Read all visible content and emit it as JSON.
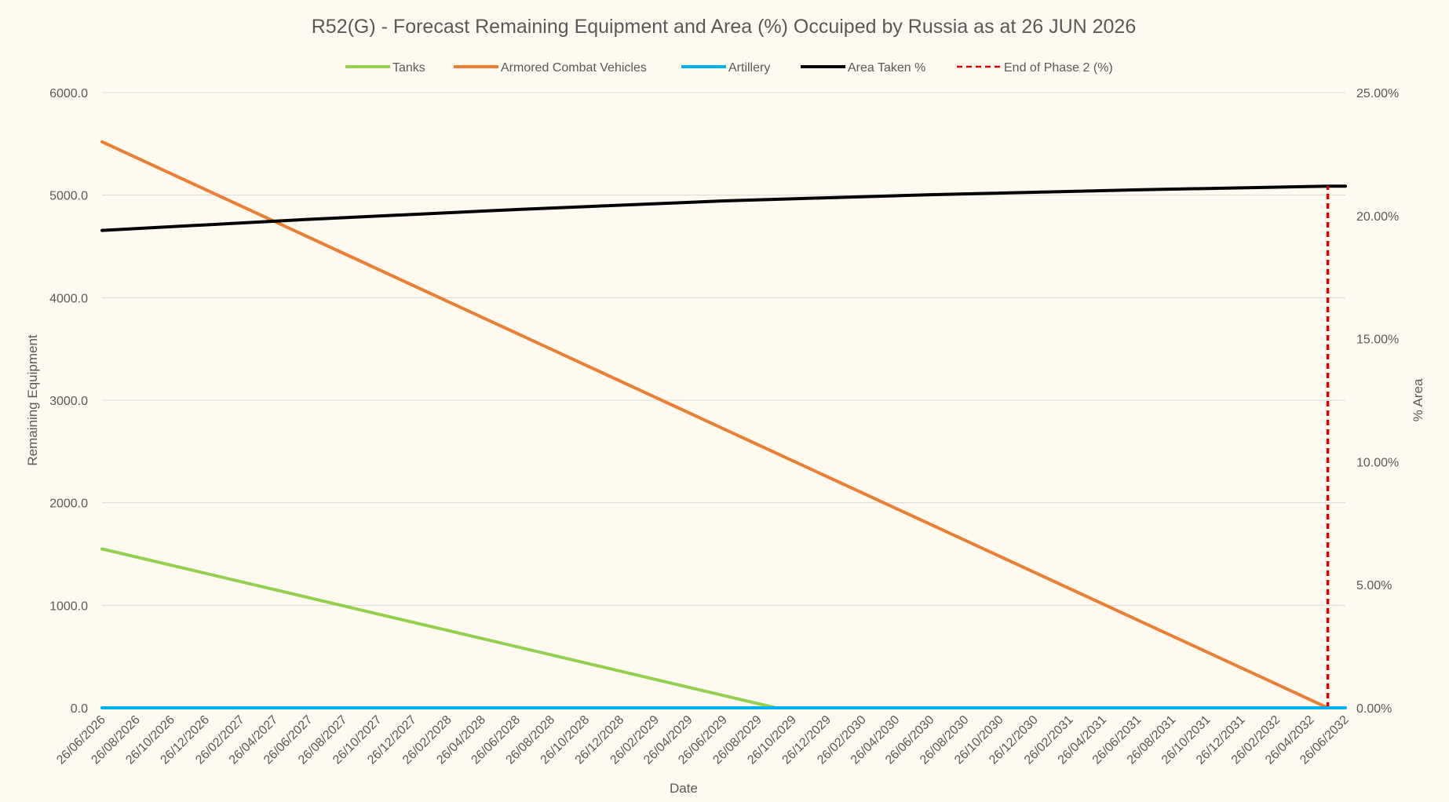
{
  "chart_data": {
    "type": "line",
    "title": "R52(G) - Forecast Remaining Equipment and Area (%) Occuiped by Russia as at 26 JUN 2026",
    "xlabel": "Date",
    "ylabel": "Remaining Equipment",
    "y2label": "% Area",
    "ylim": [
      0,
      6000
    ],
    "y2lim": [
      0,
      25
    ],
    "yticks": [
      "0.0",
      "1000.0",
      "2000.0",
      "3000.0",
      "4000.0",
      "5000.0",
      "6000.0"
    ],
    "y2ticks": [
      "0.00%",
      "5.00%",
      "10.00%",
      "15.00%",
      "20.00%",
      "25.00%"
    ],
    "categories": [
      "26/06/2026",
      "26/08/2026",
      "26/10/2026",
      "26/12/2026",
      "26/02/2027",
      "26/04/2027",
      "26/06/2027",
      "26/08/2027",
      "26/10/2027",
      "26/12/2027",
      "26/02/2028",
      "26/04/2028",
      "26/06/2028",
      "26/08/2028",
      "26/10/2028",
      "26/12/2028",
      "26/02/2029",
      "26/04/2029",
      "26/06/2029",
      "26/08/2029",
      "26/10/2029",
      "26/12/2029",
      "26/02/2030",
      "26/04/2030",
      "26/06/2030",
      "26/08/2030",
      "26/10/2030",
      "26/12/2030",
      "26/02/2031",
      "26/04/2031",
      "26/06/2031",
      "26/08/2031",
      "26/10/2031",
      "26/12/2031",
      "26/02/2032",
      "26/04/2032",
      "26/06/2032"
    ],
    "legend_position": "top",
    "grid": true,
    "series": [
      {
        "name": "Tanks",
        "color": "#92d050",
        "axis": "left",
        "style": "solid",
        "x": [
          "26/06/2026",
          "26/09/2029",
          "26/06/2032"
        ],
        "y": [
          1550,
          0,
          0
        ]
      },
      {
        "name": "Armored Combat Vehicles",
        "color": "#ed7d31",
        "axis": "left",
        "style": "solid",
        "x": [
          "26/06/2026",
          "26/05/2032"
        ],
        "y": [
          5520,
          0
        ]
      },
      {
        "name": "Artillery",
        "color": "#00b0f0",
        "axis": "left",
        "style": "solid",
        "x": [
          "26/06/2026",
          "26/06/2032"
        ],
        "y": [
          0,
          0
        ]
      },
      {
        "name": "Area Taken %",
        "color": "#000000",
        "axis": "right",
        "style": "solid",
        "x": [
          "26/06/2026",
          "26/06/2027",
          "26/06/2028",
          "26/06/2029",
          "26/06/2030",
          "26/06/2031",
          "26/05/2032",
          "26/06/2032"
        ],
        "y": [
          19.4,
          19.85,
          20.25,
          20.6,
          20.85,
          21.05,
          21.2,
          21.2
        ]
      },
      {
        "name": "End of Phase 2 (%)",
        "color": "#e00000",
        "axis": "right",
        "style": "dashed",
        "x": [
          "26/05/2032",
          "26/05/2032"
        ],
        "y": [
          0,
          21.2
        ]
      }
    ]
  }
}
